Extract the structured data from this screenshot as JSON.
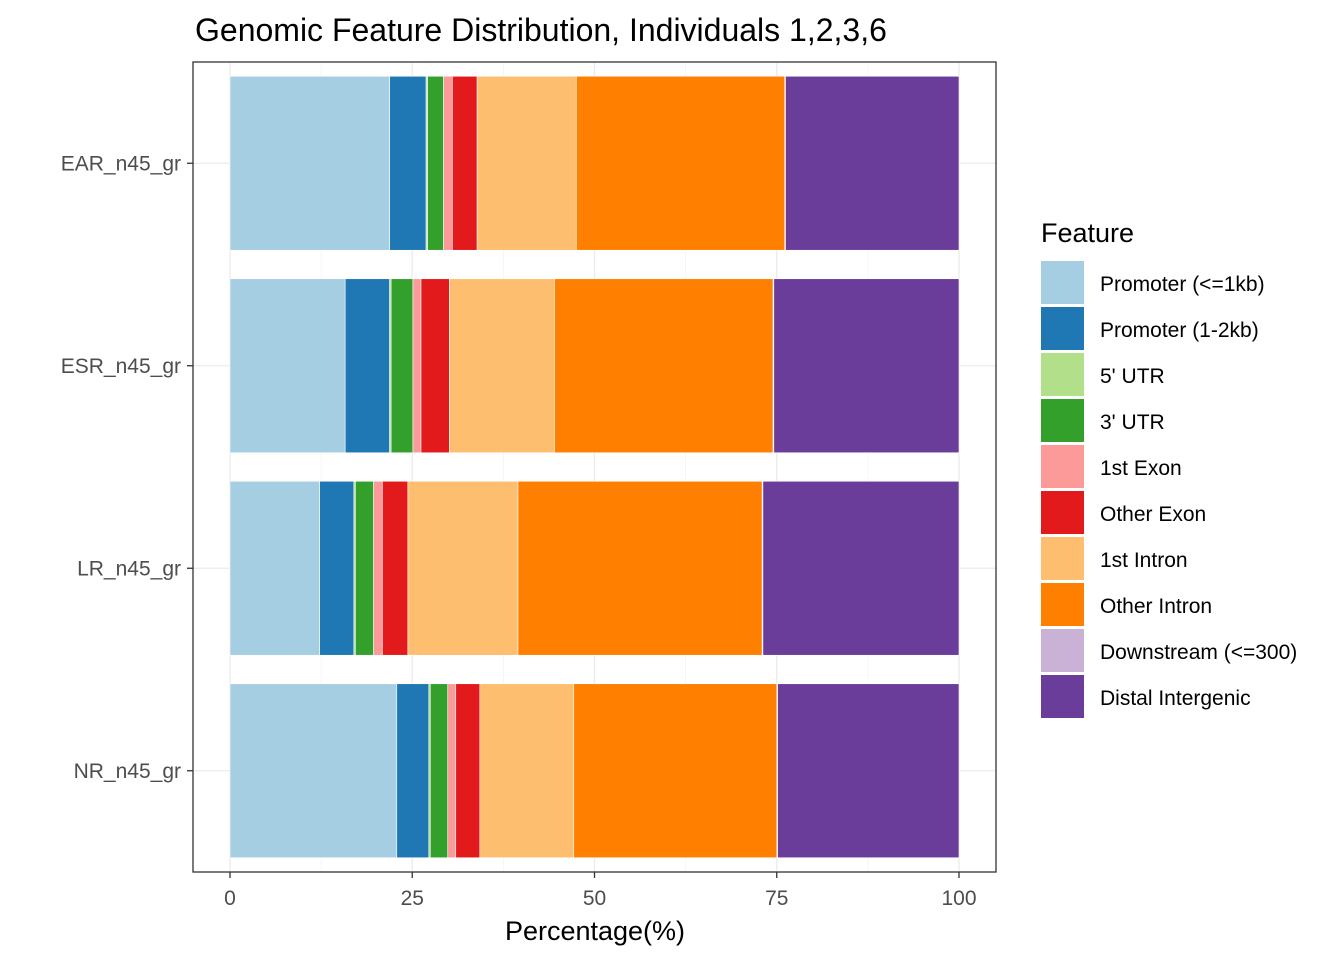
{
  "chart_data": {
    "type": "bar",
    "orientation": "horizontal",
    "stacked": true,
    "title": "Genomic Feature Distribution, Individuals 1,2,3,6",
    "xlabel": "Percentage(%)",
    "ylabel": "",
    "xlim": [
      0,
      100
    ],
    "x_ticks": [
      "0",
      "25",
      "50",
      "75",
      "100"
    ],
    "grid": true,
    "legend_title": "Feature",
    "legend_position": "right",
    "categories": [
      "EAR_n45_gr",
      "ESR_n45_gr",
      "LR_n45_gr",
      "NR_n45_gr"
    ],
    "series": [
      {
        "name": "Promoter (<=1kb)",
        "color": "#A6CEE3",
        "values": [
          21.9,
          15.8,
          12.3,
          22.9
        ]
      },
      {
        "name": "Promoter (1-2kb)",
        "color": "#1F78B4",
        "values": [
          5.0,
          6.1,
          4.7,
          4.4
        ]
      },
      {
        "name": "5' UTR",
        "color": "#B2DF8A",
        "values": [
          0.2,
          0.2,
          0.2,
          0.2
        ]
      },
      {
        "name": "3' UTR",
        "color": "#33A02C",
        "values": [
          2.2,
          3.0,
          2.5,
          2.4
        ]
      },
      {
        "name": "1st Exon",
        "color": "#FB9A99",
        "values": [
          1.2,
          1.1,
          1.2,
          1.1
        ]
      },
      {
        "name": "Other Exon",
        "color": "#E31A1C",
        "values": [
          3.4,
          3.9,
          3.5,
          3.3
        ]
      },
      {
        "name": "1st Intron",
        "color": "#FDBF6F",
        "values": [
          13.6,
          14.4,
          15.1,
          12.9
        ]
      },
      {
        "name": "Other Intron",
        "color": "#FF7F00",
        "values": [
          28.6,
          30.0,
          33.5,
          27.9
        ]
      },
      {
        "name": "Downstream (<=300)",
        "color": "#CAB2D6",
        "values": [
          0.1,
          0.1,
          0.1,
          0.1
        ]
      },
      {
        "name": "Distal Intergenic",
        "color": "#6A3D9A",
        "values": [
          23.8,
          25.4,
          26.9,
          24.9
        ]
      }
    ]
  }
}
